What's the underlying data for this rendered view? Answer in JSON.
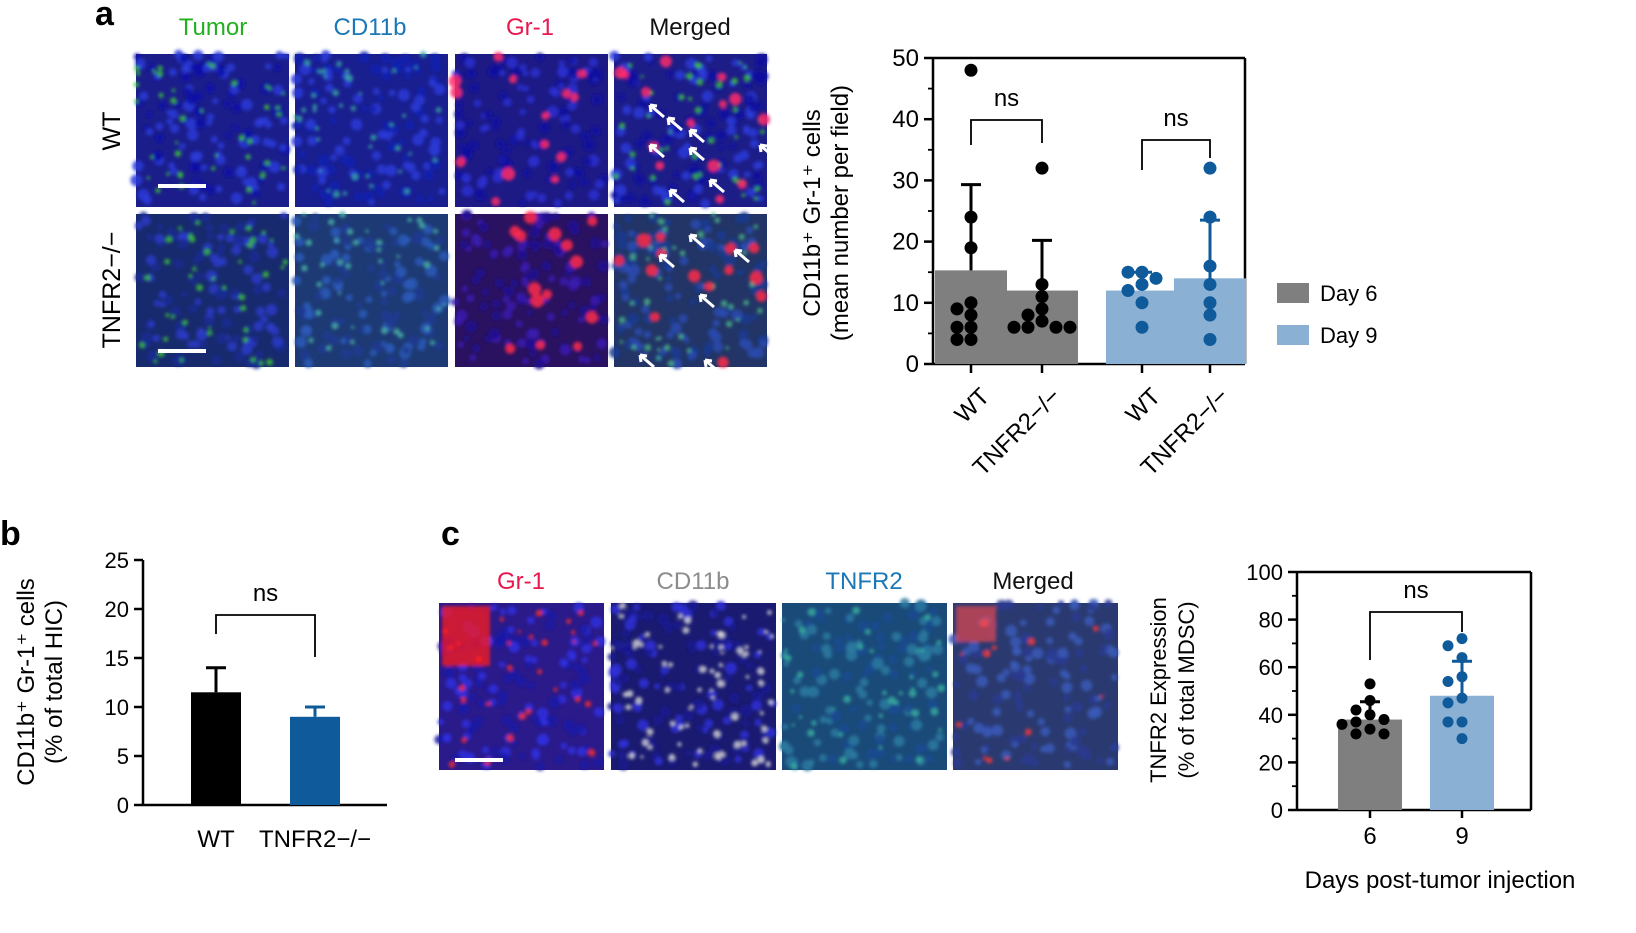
{
  "panel_labels": {
    "a": "a",
    "b": "b",
    "c": "c"
  },
  "colors": {
    "tumor": "#22b01e",
    "cd11b": "#1a78b8",
    "gr1": "#e8174e",
    "merged": "#111111",
    "cd11b_grey": "#8c8c8c",
    "tnfr2": "#1a78b8",
    "day6": "#7f7f7f",
    "day9": "#8ab0d3",
    "wt_bar": "#000000",
    "ko_bar": "#0f5a9a",
    "dot_day6": "#000000",
    "dot_day9": "#0f5a9a"
  },
  "panel_a_micrographs": {
    "channels": [
      "Tumor",
      "CD11b",
      "Gr-1",
      "Merged"
    ],
    "rows": [
      "WT",
      "TNFR2−/−"
    ]
  },
  "panel_c_micrographs": {
    "channels": [
      "Gr-1",
      "CD11b",
      "TNFR2",
      "Merged"
    ]
  },
  "chart_data": [
    {
      "id": "a",
      "type": "bar",
      "title": "",
      "ylabel_line1": "CD11b⁺ Gr-1⁺ cells",
      "ylabel_line2": "(mean number per field)",
      "ylim": [
        0,
        50
      ],
      "yticks": [
        "0",
        "10",
        "20",
        "30",
        "40",
        "50"
      ],
      "categories": [
        "WT",
        "TNFR2−/−",
        "WT",
        "TNFR2−/−"
      ],
      "values": [
        15.3,
        12.0,
        12.0,
        14.0
      ],
      "errors": [
        14.0,
        8.2,
        3.0,
        9.5
      ],
      "groups": [
        "Day 6",
        "Day 6",
        "Day 9",
        "Day 9"
      ],
      "points": [
        [
          48,
          24,
          19,
          10,
          9,
          8,
          6,
          6,
          4,
          4
        ],
        [
          32,
          13,
          11,
          9,
          8,
          7,
          6,
          6,
          6,
          6
        ],
        [
          15,
          15,
          14,
          13,
          12,
          10,
          6
        ],
        [
          32,
          24,
          16,
          13,
          10,
          8,
          4
        ]
      ],
      "significance": [
        {
          "between": [
            0,
            1
          ],
          "label": "ns"
        },
        {
          "between": [
            2,
            3
          ],
          "label": "ns"
        }
      ],
      "legend": [
        {
          "label": "Day 6",
          "color_key": "day6"
        },
        {
          "label": "Day 9",
          "color_key": "day9"
        }
      ],
      "legend_position": "right"
    },
    {
      "id": "b",
      "type": "bar",
      "title": "",
      "ylabel_line1": "CD11b⁺ Gr-1⁺ cells",
      "ylabel_line2": "(% of total HIC)",
      "ylim": [
        0,
        25
      ],
      "yticks": [
        "0",
        "5",
        "10",
        "15",
        "20",
        "25"
      ],
      "categories": [
        "WT",
        "TNFR2−/−"
      ],
      "values": [
        11.5,
        9.0
      ],
      "errors": [
        2.5,
        1.0
      ],
      "significance": [
        {
          "between": [
            0,
            1
          ],
          "label": "ns"
        }
      ]
    },
    {
      "id": "c",
      "type": "bar",
      "title": "",
      "ylabel_line1": "TNFR2 Expression",
      "ylabel_line2": "(% of total MDSC)",
      "xlabel": "Days post-tumor injection",
      "ylim": [
        0,
        100
      ],
      "yticks": [
        "0",
        "20",
        "40",
        "60",
        "80",
        "100"
      ],
      "categories": [
        "6",
        "9"
      ],
      "values": [
        38,
        48
      ],
      "errors": [
        7.5,
        14.5
      ],
      "points": [
        [
          53,
          46,
          42,
          40,
          38,
          37,
          36,
          34,
          32,
          32
        ],
        [
          72,
          69,
          64,
          56,
          54,
          47,
          45,
          37,
          37,
          30
        ]
      ],
      "significance": [
        {
          "between": [
            0,
            1
          ],
          "label": "ns"
        }
      ]
    }
  ]
}
